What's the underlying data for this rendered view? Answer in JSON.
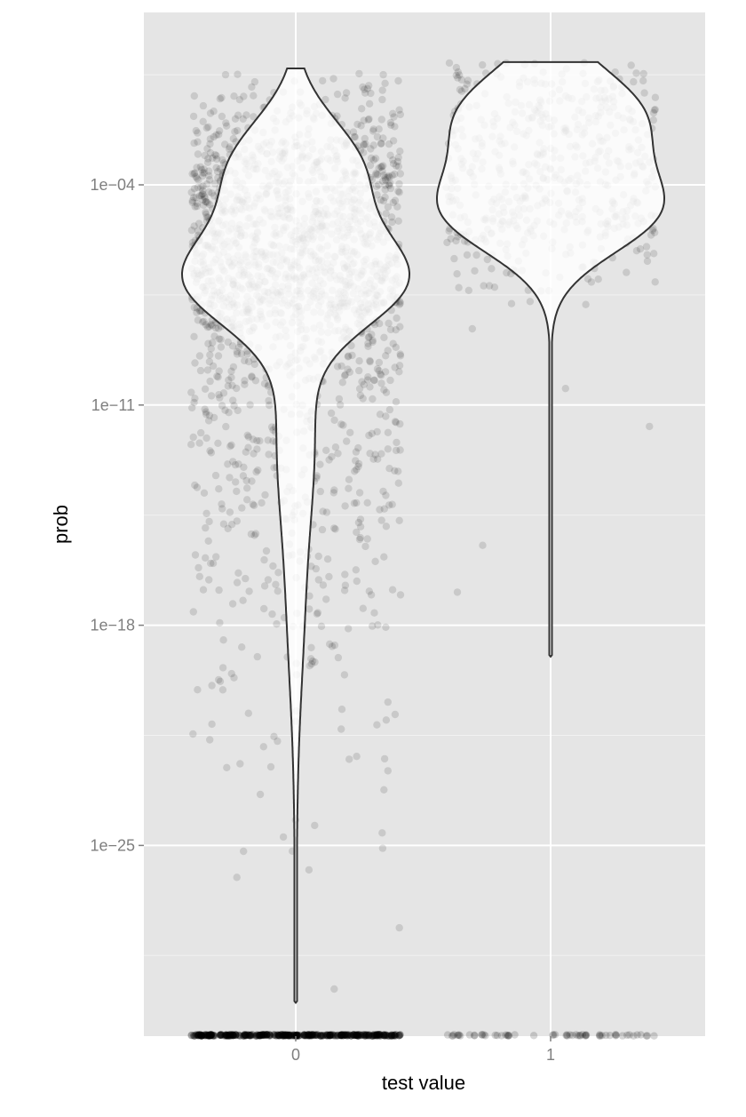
{
  "chart_data": {
    "type": "violin",
    "title": "",
    "xlabel": "test value",
    "ylabel": "prob",
    "y_scale": "log10",
    "y_ticks": [
      {
        "exp": -4,
        "label": "1e−04"
      },
      {
        "exp": -11,
        "label": "1e−11"
      },
      {
        "exp": -18,
        "label": "1e−18"
      },
      {
        "exp": -25,
        "label": "1e−25"
      }
    ],
    "categories": [
      "0",
      "1"
    ],
    "ylim_exponent": [
      -32.3,
      0.4
    ],
    "grid": true,
    "legend": "none",
    "colors": {
      "panel": "#e5e5e5",
      "grid": "#ffffff",
      "points": "#000000",
      "violin_fill": "#ffffff",
      "violin_outline": "#333333"
    },
    "series": [
      {
        "category": "0",
        "max_exp": -0.3,
        "min_exp": -30.0,
        "mode_exp": -7.0,
        "secondary_mode_exp": -4.0,
        "point_count": 1800,
        "zero_points": true
      },
      {
        "category": "1",
        "max_exp": -0.1,
        "min_exp": -19.0,
        "mode_exp": -2.5,
        "secondary_mode_exp": -5.0,
        "point_count": 520,
        "zero_points": true
      }
    ]
  }
}
